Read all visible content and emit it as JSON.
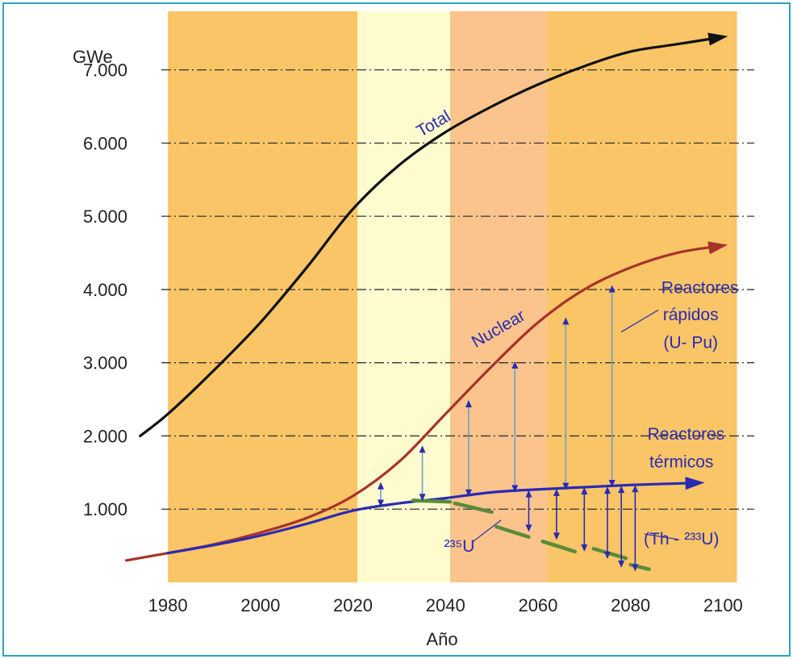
{
  "chart_data": {
    "type": "line",
    "ylabel": "GWe",
    "xlabel": "Año",
    "xlim": [
      1973,
      2105
    ],
    "ylim": [
      0,
      7800
    ],
    "x_ticks": [
      1980,
      2000,
      2020,
      2040,
      2060,
      2080,
      2100
    ],
    "x_tick_labels": [
      "1980",
      "2000",
      "2020",
      "2040",
      "2060",
      "2080",
      "2100"
    ],
    "y_ticks": [
      1000,
      2000,
      3000,
      4000,
      5000,
      6000,
      7000
    ],
    "y_tick_labels": [
      "1.000",
      "2.000",
      "3.000",
      "4.000",
      "5.000",
      "6.000",
      "7.000"
    ],
    "grid": "horizontal dash-dot",
    "background_bands": [
      {
        "from": 1980,
        "to": 2021,
        "color": "#f9c567"
      },
      {
        "from": 2021,
        "to": 2041,
        "color": "#fefccf"
      },
      {
        "from": 2041,
        "to": 2062,
        "color": "#fbc48c"
      },
      {
        "from": 2062,
        "to": 2103,
        "color": "#f9c567"
      }
    ],
    "series": [
      {
        "name": "Total",
        "color": "#111111",
        "x": [
          1974,
          1980,
          1990,
          2000,
          2010,
          2020,
          2030,
          2040,
          2050,
          2060,
          2070,
          2080,
          2090,
          2100
        ],
        "y": [
          2000,
          2300,
          2900,
          3550,
          4300,
          5100,
          5700,
          6150,
          6500,
          6800,
          7050,
          7250,
          7350,
          7450
        ]
      },
      {
        "name": "Nuclear",
        "color": "#a8322a",
        "x": [
          1971,
          1980,
          1990,
          2000,
          2010,
          2020,
          2030,
          2040,
          2050,
          2060,
          2070,
          2080,
          2090,
          2100
        ],
        "y": [
          300,
          400,
          520,
          680,
          880,
          1180,
          1650,
          2300,
          2950,
          3550,
          4000,
          4300,
          4500,
          4600
        ]
      },
      {
        "name": "Reactores térmicos",
        "color": "#2a2ab4",
        "x": [
          1980,
          1990,
          2000,
          2010,
          2020,
          2030,
          2040,
          2050,
          2060,
          2070,
          2080,
          2090,
          2095
        ],
        "y": [
          400,
          510,
          640,
          800,
          980,
          1080,
          1150,
          1230,
          1270,
          1300,
          1330,
          1350,
          1360
        ]
      }
    ],
    "u235_segments": [
      {
        "x": [
          2033,
          2041
        ],
        "y": [
          1120,
          1100
        ]
      },
      {
        "x": [
          2042,
          2050
        ],
        "y": [
          1080,
          960
        ]
      },
      {
        "x": [
          2051,
          2058
        ],
        "y": [
          760,
          620
        ]
      },
      {
        "x": [
          2061,
          2068
        ],
        "y": [
          560,
          420
        ]
      },
      {
        "x": [
          2072,
          2079
        ],
        "y": [
          460,
          330
        ]
      },
      {
        "x": [
          2080,
          2084
        ],
        "y": [
          240,
          180
        ]
      }
    ],
    "fast_reactor_arrows": [
      {
        "x": 2026,
        "y0": 1030,
        "y1": 1370
      },
      {
        "x": 2035,
        "y0": 1110,
        "y1": 1870
      },
      {
        "x": 2045,
        "y0": 1170,
        "y1": 2490
      },
      {
        "x": 2055,
        "y0": 1230,
        "y1": 3020
      },
      {
        "x": 2066,
        "y0": 1260,
        "y1": 3620
      },
      {
        "x": 2076,
        "y0": 1300,
        "y1": 4060
      }
    ],
    "thorium_arrows": [
      {
        "x": 2058,
        "y0": 690,
        "y1": 1260
      },
      {
        "x": 2064,
        "y0": 580,
        "y1": 1280
      },
      {
        "x": 2070,
        "y0": 420,
        "y1": 1300
      },
      {
        "x": 2075,
        "y0": 320,
        "y1": 1310
      },
      {
        "x": 2078,
        "y0": 200,
        "y1": 1320
      },
      {
        "x": 2081,
        "y0": 150,
        "y1": 1330
      }
    ],
    "annotations": [
      {
        "text": "Total",
        "x": 2038,
        "y": 6200,
        "rotate": -30,
        "color": "#111111"
      },
      {
        "text": "Nuclear",
        "x": 2052,
        "y": 3400,
        "rotate": -30,
        "color": "#a8322a"
      },
      {
        "text": "Reactores",
        "x": 2095,
        "y": 3950,
        "color": "#2a2ab4"
      },
      {
        "text": "rápidos",
        "x": 2093,
        "y": 3580,
        "color": "#2a2ab4"
      },
      {
        "text": "(U- Pu)",
        "x": 2093,
        "y": 3200,
        "color": "#2a2ab4"
      },
      {
        "text": "Reactores",
        "x": 2092,
        "y": 1950,
        "color": "#2a2ab4"
      },
      {
        "text": "térmicos",
        "x": 2091,
        "y": 1570,
        "color": "#2a2ab4"
      },
      {
        "text": "(Th - ²³³U)",
        "x": 2091,
        "y": 520,
        "color": "#2a2ab4"
      },
      {
        "text": "²³⁵U",
        "x": 2043,
        "y": 420,
        "color": "#2a2ab4"
      }
    ]
  }
}
